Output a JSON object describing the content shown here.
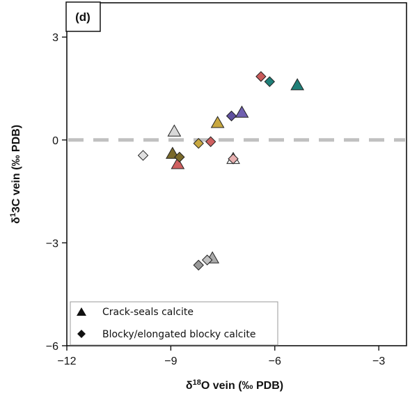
{
  "chart_data": {
    "type": "scatter",
    "panel_label": "(d)",
    "xlabel": "δ18O vein (‰ PDB)",
    "xlabel_parts": {
      "delta": "δ",
      "sup": "18",
      "rest": "O vein (‰ PDB)"
    },
    "ylabel": "δ13C vein (‰ PDB)",
    "ylabel_parts": {
      "delta": "δ",
      "sup": "1",
      "rest": "3C vein (‰ PDB)"
    },
    "xlim": [
      -12,
      -2.2
    ],
    "ylim": [
      -6,
      4
    ],
    "xticks": [
      -12,
      -9,
      -6,
      -3
    ],
    "yticks": [
      -6,
      -3,
      0,
      3
    ],
    "reference_line": {
      "y": 0,
      "style": "dashed",
      "color": "#c0c0c0"
    },
    "legend": {
      "placement": "bottom-left",
      "entries": [
        {
          "label": "Crack-seals calcite",
          "marker": "triangle"
        },
        {
          "label": "Blocky/elongated blocky calcite",
          "marker": "diamond"
        }
      ]
    },
    "series": [
      {
        "marker": "triangle",
        "points": [
          {
            "x": -5.35,
            "y": 1.6,
            "color": "#1f7f78"
          },
          {
            "x": -6.95,
            "y": 0.8,
            "color": "#7060b0"
          },
          {
            "x": -7.65,
            "y": 0.5,
            "color": "#c8a840"
          },
          {
            "x": -8.9,
            "y": 0.25,
            "color": "#d8d8d8"
          },
          {
            "x": -8.95,
            "y": -0.4,
            "color": "#7a6a2a"
          },
          {
            "x": -8.8,
            "y": -0.7,
            "color": "#cf6060"
          },
          {
            "x": -7.2,
            "y": -0.55,
            "color": "#f0f0f0"
          },
          {
            "x": -7.8,
            "y": -3.45,
            "color": "#aaaaaa"
          }
        ]
      },
      {
        "marker": "diamond",
        "points": [
          {
            "x": -6.4,
            "y": 1.85,
            "color": "#c85a5a"
          },
          {
            "x": -6.15,
            "y": 1.7,
            "color": "#1f7f78"
          },
          {
            "x": -7.25,
            "y": 0.7,
            "color": "#6050a0"
          },
          {
            "x": -9.8,
            "y": -0.45,
            "color": "#e0e0e0"
          },
          {
            "x": -8.75,
            "y": -0.5,
            "color": "#7a6a2a"
          },
          {
            "x": -8.2,
            "y": -0.1,
            "color": "#c8a840"
          },
          {
            "x": -7.85,
            "y": -0.05,
            "color": "#cf6060"
          },
          {
            "x": -7.2,
            "y": -0.55,
            "color": "#e8b0b0"
          },
          {
            "x": -8.2,
            "y": -3.65,
            "color": "#999999"
          },
          {
            "x": -7.95,
            "y": -3.5,
            "color": "#c0c0c0"
          }
        ]
      }
    ]
  }
}
